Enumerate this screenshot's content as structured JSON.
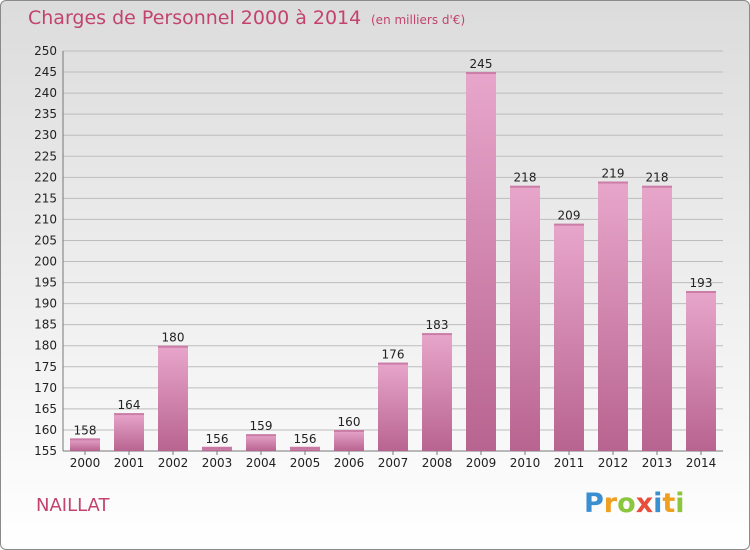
{
  "header": {
    "title": "Charges de Personnel 2000 à 2014",
    "subtitle": "(en milliers d'€)"
  },
  "footer": {
    "location": "NAILLAT",
    "logo_letters": [
      "P",
      "r",
      "o",
      "x",
      "i",
      "t",
      "i"
    ],
    "logo_colors": [
      "#3a8fd0",
      "#f0a020",
      "#8cc63f",
      "#e94e3c",
      "#3a8fd0",
      "#f0a020",
      "#8cc63f"
    ]
  },
  "chart_data": {
    "type": "bar",
    "categories": [
      "2000",
      "2001",
      "2002",
      "2003",
      "2004",
      "2005",
      "2006",
      "2007",
      "2008",
      "2009",
      "2010",
      "2011",
      "2012",
      "2013",
      "2014"
    ],
    "values": [
      158,
      164,
      180,
      156,
      159,
      156,
      160,
      176,
      183,
      245,
      218,
      209,
      219,
      218,
      193
    ],
    "ylim": [
      155,
      250
    ],
    "yticks": [
      155,
      160,
      165,
      170,
      175,
      180,
      185,
      190,
      195,
      200,
      205,
      210,
      215,
      220,
      225,
      230,
      235,
      240,
      245,
      250
    ],
    "grid": true,
    "bar_color": "#d77fab",
    "bar_color_light": "#e8a6cb",
    "bar_color_dark": "#b86490",
    "grid_color": "#bdbdbd",
    "label_color": "#222222"
  }
}
